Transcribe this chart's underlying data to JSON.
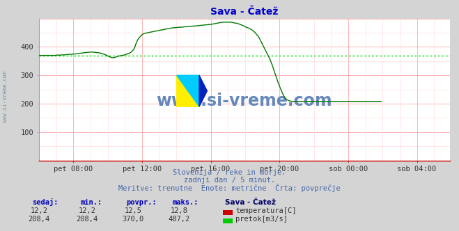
{
  "title": "Sava - Čatež",
  "bg_color": "#d4d4d4",
  "plot_bg_color": "#ffffff",
  "grid_color_major": "#ff9999",
  "grid_color_minor": "#ffdddd",
  "avg_line_color": "#00dd00",
  "avg_line_value": 370.0,
  "flow_line_color": "#007700",
  "title_color": "#0000cc",
  "xtick_labels": [
    "pet 08:00",
    "pet 12:00",
    "pet 16:00",
    "pet 20:00",
    "sob 00:00",
    "sob 04:00"
  ],
  "ytick_values": [
    100,
    200,
    300,
    400
  ],
  "ymax": 500,
  "ymin": 0,
  "subtitle_lines": [
    "Slovenija / reke in morje.",
    "zadnji dan / 5 minut.",
    "Meritve: trenutne  Enote: metrične  Črta: povprečje"
  ],
  "legend_title": "Sava - Čatež",
  "legend_items": [
    {
      "label": "temperatura[C]",
      "color": "#cc0000"
    },
    {
      "label": "pretok[m3/s]",
      "color": "#00bb00"
    }
  ],
  "stats_headers": [
    "sedaj:",
    "min.:",
    "povpr.:",
    "maks.:"
  ],
  "stats_temp": [
    "12,2",
    "12,2",
    "12,5",
    "12,8"
  ],
  "stats_flow": [
    "208,4",
    "208,4",
    "370,0",
    "487,2"
  ],
  "flow_data": [
    370,
    370,
    370,
    370,
    370,
    370,
    370,
    370,
    370,
    370,
    370,
    370,
    371,
    371,
    371,
    371,
    372,
    372,
    372,
    373,
    373,
    374,
    374,
    374,
    375,
    375,
    376,
    376,
    377,
    378,
    378,
    379,
    380,
    380,
    381,
    381,
    382,
    382,
    381,
    381,
    380,
    380,
    379,
    378,
    377,
    375,
    373,
    371,
    368,
    366,
    364,
    362,
    362,
    363,
    365,
    367,
    368,
    369,
    370,
    371,
    372,
    374,
    376,
    378,
    380,
    385,
    390,
    400,
    415,
    425,
    432,
    438,
    443,
    446,
    448,
    449,
    450,
    451,
    452,
    453,
    454,
    455,
    456,
    457,
    458,
    459,
    460,
    461,
    462,
    463,
    464,
    465,
    466,
    467,
    467,
    468,
    468,
    469,
    469,
    469,
    470,
    470,
    471,
    471,
    471,
    472,
    472,
    473,
    473,
    474,
    474,
    475,
    475,
    476,
    476,
    477,
    477,
    478,
    478,
    479,
    479,
    480,
    481,
    482,
    483,
    484,
    485,
    486,
    487,
    487,
    487,
    487,
    487,
    487,
    487,
    486,
    485,
    484,
    483,
    482,
    480,
    478,
    476,
    474,
    471,
    469,
    467,
    465,
    462,
    459,
    455,
    450,
    444,
    438,
    430,
    420,
    410,
    400,
    390,
    380,
    370,
    360,
    348,
    335,
    320,
    305,
    290,
    275,
    262,
    250,
    238,
    228,
    220,
    215,
    212,
    210,
    209,
    208,
    208,
    208,
    208,
    208,
    208,
    208,
    208,
    208,
    208,
    208,
    208,
    208,
    208,
    208,
    208,
    208,
    208,
    208,
    208,
    208,
    208,
    208,
    208,
    208,
    208,
    208,
    208,
    208,
    208,
    208,
    208,
    208,
    208,
    208,
    208,
    208,
    208,
    208,
    208,
    208,
    208,
    208,
    208,
    208,
    208,
    208,
    208,
    208,
    208,
    208,
    208,
    208,
    208,
    208,
    208,
    208,
    208,
    208,
    208,
    208,
    208,
    208
  ],
  "watermark_text": "www.si-vreme.com",
  "watermark_color": "#6688bb",
  "left_label": "www.si-vreme.com",
  "left_label_color": "#7799aa",
  "axis_color": "#cc0000",
  "spine_color": "#9999bb"
}
